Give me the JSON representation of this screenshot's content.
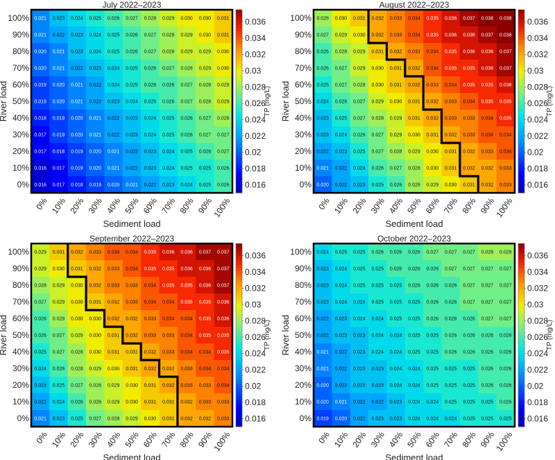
{
  "chart_data": [
    {
      "type": "heatmap",
      "title": "July 2022–2023",
      "xlabel": "Sediment load",
      "ylabel": "River load",
      "x_ticks": [
        "0%",
        "10%",
        "20%",
        "30%",
        "40%",
        "50%",
        "60%",
        "70%",
        "80%",
        "90%",
        "100%"
      ],
      "y_ticks": [
        "100%",
        "90%",
        "80%",
        "70%",
        "60%",
        "50%",
        "40%",
        "30%",
        "20%",
        "10%",
        "0%"
      ],
      "colorbar_label": "TP (mg/L)",
      "colorbar_ticks": [
        "0.016",
        "0.018",
        "0.02",
        "0.022",
        "0.024",
        "0.026",
        "0.028",
        "0.03",
        "0.032",
        "0.034",
        "0.036"
      ],
      "vmin": 0.015,
      "vmax": 0.0375,
      "values": [
        [
          "0.021",
          "0.023",
          "0.024",
          "0.025",
          "0.026",
          "0.027",
          "0.028",
          "0.029",
          "0.030",
          "0.030",
          "0.031"
        ],
        [
          "0.021",
          "0.022",
          "0.023",
          "0.024",
          "0.025",
          "0.026",
          "0.027",
          "0.028",
          "0.029",
          "0.030",
          "0.031"
        ],
        [
          "0.020",
          "0.021",
          "0.023",
          "0.024",
          "0.025",
          "0.026",
          "0.027",
          "0.028",
          "0.029",
          "0.029",
          "0.030"
        ],
        [
          "0.020",
          "0.021",
          "0.022",
          "0.023",
          "0.024",
          "0.025",
          "0.026",
          "0.027",
          "0.028",
          "0.029",
          "0.030"
        ],
        [
          "0.019",
          "0.020",
          "0.021",
          "0.022",
          "0.024",
          "0.025",
          "0.026",
          "0.026",
          "0.027",
          "0.028",
          "0.029"
        ],
        [
          "0.019",
          "0.020",
          "0.021",
          "0.022",
          "0.023",
          "0.024",
          "0.025",
          "0.026",
          "0.027",
          "0.028",
          "0.029"
        ],
        [
          "0.018",
          "0.019",
          "0.020",
          "0.021",
          "0.022",
          "0.023",
          "0.024",
          "0.025",
          "0.026",
          "0.027",
          "0.028"
        ],
        [
          "0.017",
          "0.019",
          "0.020",
          "0.021",
          "0.022",
          "0.023",
          "0.024",
          "0.025",
          "0.026",
          "0.027",
          "0.027"
        ],
        [
          "0.017",
          "0.018",
          "0.019",
          "0.020",
          "0.021",
          "0.022",
          "0.023",
          "0.024",
          "0.025",
          "0.026",
          "0.027"
        ],
        [
          "0.016",
          "0.017",
          "0.019",
          "0.020",
          "0.021",
          "0.022",
          "0.023",
          "0.024",
          "0.025",
          "0.025",
          "0.026"
        ],
        [
          "0.016",
          "0.017",
          "0.018",
          "0.019",
          "0.020",
          "0.021",
          "0.022",
          "0.023",
          "0.024",
          "0.025",
          "0.026"
        ]
      ],
      "boundary": [
        11,
        11,
        11,
        11,
        11,
        11,
        11,
        11,
        11,
        11,
        11
      ]
    },
    {
      "type": "heatmap",
      "title": "August 2022–2023",
      "xlabel": "Sediment load",
      "ylabel": "River load",
      "x_ticks": [
        "0%",
        "10%",
        "20%",
        "30%",
        "40%",
        "50%",
        "60%",
        "70%",
        "80%",
        "90%",
        "100%"
      ],
      "y_ticks": [
        "100%",
        "90%",
        "80%",
        "70%",
        "60%",
        "50%",
        "40%",
        "30%",
        "20%",
        "10%",
        "0%"
      ],
      "colorbar_label": "TP (mg/L)",
      "colorbar_ticks": [
        "0.016",
        "0.018",
        "0.02",
        "0.022",
        "0.024",
        "0.026",
        "0.028",
        "0.03",
        "0.032",
        "0.034",
        "0.036"
      ],
      "vmin": 0.015,
      "vmax": 0.0375,
      "values": [
        [
          "0.028",
          "0.030",
          "0.031",
          "0.032",
          "0.033",
          "0.034",
          "0.035",
          "0.036",
          "0.037",
          "0.038",
          "0.038"
        ],
        [
          "0.027",
          "0.029",
          "0.030",
          "0.032",
          "0.033",
          "0.034",
          "0.035",
          "0.036",
          "0.036",
          "0.037",
          "0.038"
        ],
        [
          "0.026",
          "0.028",
          "0.029",
          "0.031",
          "0.032",
          "0.033",
          "0.034",
          "0.035",
          "0.036",
          "0.036",
          "0.037"
        ],
        [
          "0.026",
          "0.027",
          "0.029",
          "0.030",
          "0.031",
          "0.032",
          "0.034",
          "0.035",
          "0.035",
          "0.036",
          "0.037"
        ],
        [
          "0.025",
          "0.027",
          "0.028",
          "0.030",
          "0.031",
          "0.032",
          "0.033",
          "0.034",
          "0.035",
          "0.035",
          "0.036"
        ],
        [
          "0.024",
          "0.026",
          "0.027",
          "0.029",
          "0.030",
          "0.031",
          "0.032",
          "0.033",
          "0.034",
          "0.035",
          "0.035"
        ],
        [
          "0.023",
          "0.025",
          "0.027",
          "0.028",
          "0.029",
          "0.031",
          "0.032",
          "0.033",
          "0.033",
          "0.034",
          "0.035"
        ],
        [
          "0.023",
          "0.024",
          "0.026",
          "0.027",
          "0.029",
          "0.030",
          "0.031",
          "0.032",
          "0.033",
          "0.034",
          "0.034"
        ],
        [
          "0.022",
          "0.023",
          "0.025",
          "0.027",
          "0.028",
          "0.029",
          "0.030",
          "0.031",
          "0.032",
          "0.033",
          "0.034"
        ],
        [
          "0.021",
          "0.022",
          "0.024",
          "0.026",
          "0.027",
          "0.028",
          "0.030",
          "0.031",
          "0.032",
          "0.032",
          "0.033"
        ],
        [
          "0.020",
          "0.022",
          "0.023",
          "0.025",
          "0.026",
          "0.028",
          "0.029",
          "0.030",
          "0.031",
          "0.032",
          "0.033"
        ]
      ],
      "boundary": [
        3,
        3,
        4,
        5,
        6,
        6,
        7,
        7,
        8,
        8,
        9
      ]
    },
    {
      "type": "heatmap",
      "title": "September 2022–2023",
      "xlabel": "Sediment load",
      "ylabel": "River load",
      "x_ticks": [
        "0%",
        "10%",
        "20%",
        "30%",
        "40%",
        "50%",
        "60%",
        "70%",
        "80%",
        "90%",
        "100%"
      ],
      "y_ticks": [
        "100%",
        "90%",
        "80%",
        "70%",
        "60%",
        "50%",
        "40%",
        "30%",
        "20%",
        "10%",
        "0%"
      ],
      "colorbar_label": "TP (mg/L)",
      "colorbar_ticks": [
        "0.016",
        "0.018",
        "0.02",
        "0.022",
        "0.024",
        "0.026",
        "0.028",
        "0.03",
        "0.032",
        "0.034",
        "0.036"
      ],
      "vmin": 0.015,
      "vmax": 0.0375,
      "values": [
        [
          "0.029",
          "0.031",
          "0.032",
          "0.033",
          "0.034",
          "0.034",
          "0.035",
          "0.036",
          "0.036",
          "0.037",
          "0.037"
        ],
        [
          "0.029",
          "0.030",
          "0.031",
          "0.032",
          "0.033",
          "0.034",
          "0.035",
          "0.035",
          "0.036",
          "0.036",
          "0.037"
        ],
        [
          "0.028",
          "0.029",
          "0.030",
          "0.032",
          "0.033",
          "0.033",
          "0.034",
          "0.035",
          "0.035",
          "0.036",
          "0.037"
        ],
        [
          "0.027",
          "0.029",
          "0.030",
          "0.031",
          "0.032",
          "0.033",
          "0.034",
          "0.034",
          "0.035",
          "0.035",
          "0.036"
        ],
        [
          "0.026",
          "0.028",
          "0.030",
          "0.030",
          "0.032",
          "0.032",
          "0.033",
          "0.034",
          "0.034",
          "0.035",
          "0.036"
        ],
        [
          "0.026",
          "0.027",
          "0.029",
          "0.030",
          "0.031",
          "0.032",
          "0.033",
          "0.033",
          "0.034",
          "0.035",
          "0.035"
        ],
        [
          "0.025",
          "0.027",
          "0.028",
          "0.030",
          "0.031",
          "0.031",
          "0.032",
          "0.033",
          "0.034",
          "0.034",
          "0.035"
        ],
        [
          "0.024",
          "0.026",
          "0.028",
          "0.029",
          "0.030",
          "0.031",
          "0.032",
          "0.032",
          "0.033",
          "0.034",
          "0.034"
        ],
        [
          "0.023",
          "0.025",
          "0.027",
          "0.028",
          "0.029",
          "0.030",
          "0.031",
          "0.032",
          "0.033",
          "0.033",
          "0.034"
        ],
        [
          "0.022",
          "0.024",
          "0.026",
          "0.028",
          "0.029",
          "0.030",
          "0.031",
          "0.031",
          "0.032",
          "0.033",
          "0.033"
        ],
        [
          "0.021",
          "0.023",
          "0.025",
          "0.027",
          "0.028",
          "0.029",
          "0.030",
          "0.031",
          "0.032",
          "0.032",
          "0.033"
        ]
      ],
      "boundary": [
        2,
        2,
        3,
        3,
        4,
        5,
        6,
        7,
        8,
        8,
        8
      ]
    },
    {
      "type": "heatmap",
      "title": "October 2022–2023",
      "xlabel": "Sediment load",
      "ylabel": "River load",
      "x_ticks": [
        "0%",
        "10%",
        "20%",
        "30%",
        "40%",
        "50%",
        "60%",
        "70%",
        "80%",
        "90%",
        "100%"
      ],
      "y_ticks": [
        "100%",
        "90%",
        "80%",
        "70%",
        "60%",
        "50%",
        "40%",
        "30%",
        "20%",
        "10%",
        "0%"
      ],
      "colorbar_label": "TP (mg/L)",
      "colorbar_ticks": [
        "0.016",
        "0.018",
        "0.02",
        "0.022",
        "0.024",
        "0.026",
        "0.028",
        "0.03",
        "0.032",
        "0.034",
        "0.036"
      ],
      "vmin": 0.015,
      "vmax": 0.0375,
      "values": [
        [
          "0.024",
          "0.025",
          "0.025",
          "0.026",
          "0.026",
          "0.026",
          "0.027",
          "0.027",
          "0.027",
          "0.028",
          "0.028"
        ],
        [
          "0.023",
          "0.024",
          "0.025",
          "0.025",
          "0.026",
          "0.026",
          "0.026",
          "0.027",
          "0.027",
          "0.027",
          "0.027"
        ],
        [
          "0.023",
          "0.024",
          "0.025",
          "0.025",
          "0.025",
          "0.026",
          "0.026",
          "0.026",
          "0.027",
          "0.027",
          "0.027"
        ],
        [
          "0.023",
          "0.024",
          "0.024",
          "0.025",
          "0.025",
          "0.025",
          "0.026",
          "0.026",
          "0.027",
          "0.027",
          "0.027"
        ],
        [
          "0.022",
          "0.023",
          "0.024",
          "0.024",
          "0.025",
          "0.025",
          "0.026",
          "0.026",
          "0.026",
          "0.027",
          "0.027"
        ],
        [
          "0.022",
          "0.023",
          "0.023",
          "0.024",
          "0.024",
          "0.025",
          "0.025",
          "0.026",
          "0.026",
          "0.026",
          "0.026"
        ],
        [
          "0.021",
          "0.022",
          "0.023",
          "0.024",
          "0.024",
          "0.025",
          "0.025",
          "0.026",
          "0.026",
          "0.026",
          "0.026"
        ],
        [
          "0.021",
          "0.022",
          "0.023",
          "0.023",
          "0.024",
          "0.024",
          "0.025",
          "0.025",
          "0.025",
          "0.026",
          "0.026"
        ],
        [
          "0.020",
          "0.022",
          "0.023",
          "0.023",
          "0.024",
          "0.024",
          "0.025",
          "0.025",
          "0.025",
          "0.026",
          "0.026"
        ],
        [
          "0.020",
          "0.021",
          "0.022",
          "0.022",
          "0.023",
          "0.024",
          "0.024",
          "0.025",
          "0.025",
          "0.025",
          "0.026"
        ],
        [
          "0.019",
          "0.020",
          "0.022",
          "0.023",
          "0.023",
          "0.024",
          "0.024",
          "0.024",
          "0.025",
          "0.025",
          "0.025"
        ]
      ],
      "boundary": [
        11,
        11,
        11,
        11,
        11,
        11,
        11,
        11,
        11,
        11,
        11
      ]
    }
  ]
}
